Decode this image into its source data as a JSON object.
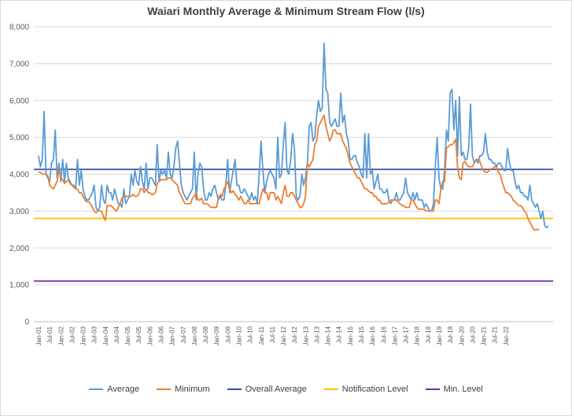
{
  "chart_data": {
    "type": "line",
    "title": "Waiari Monthly Average & Minimum Stream Flow (l/s)",
    "xlabel": "",
    "ylabel": "",
    "ylim": [
      0,
      8000
    ],
    "yticks": [
      "0",
      "1,000",
      "2,000",
      "3,000",
      "4,000",
      "5,000",
      "6,000",
      "7,000",
      "8,000"
    ],
    "x_ticks": [
      "Jan-01",
      "Jul-01",
      "Jan-02",
      "Jul-02",
      "Jan-03",
      "Jul-03",
      "Jan-04",
      "Jul-04",
      "Jan-05",
      "Jul-05",
      "Jan-06",
      "Jul-06",
      "Jan-07",
      "Jul-07",
      "Jan-08",
      "Jul-08",
      "Jan-09",
      "Jul-09",
      "Jan-10",
      "Jul-10",
      "Jan-11",
      "Jul-11",
      "Jan-12",
      "Jul-12",
      "Jan-13",
      "Jul-13",
      "Jan-14",
      "Jul-14",
      "Jan-15",
      "Jul-15",
      "Jan-16",
      "Jul-16",
      "Jan-17",
      "Jul-17",
      "Jan-18",
      "Jul-18",
      "Jan-19",
      "Jul-19",
      "Jan-20",
      "Jul-20",
      "Jan-21",
      "Jul-21",
      "Jan-22"
    ],
    "grid": true,
    "legend_position": "bottom",
    "series": [
      {
        "name": "Average",
        "color": "#5b9bd5",
        "values": [
          4500,
          4200,
          4400,
          5700,
          4000,
          3900,
          3800,
          4300,
          4400,
          5200,
          3900,
          4300,
          3800,
          4400,
          3800,
          4300,
          3900,
          3800,
          3700,
          3700,
          3600,
          4400,
          3700,
          4100,
          3600,
          3400,
          3300,
          3300,
          3400,
          3500,
          3700,
          3100,
          3000,
          3100,
          3700,
          3300,
          3200,
          3700,
          3500,
          3500,
          3300,
          3600,
          3400,
          3200,
          3200,
          3100,
          3600,
          3200,
          3300,
          3400,
          4000,
          3700,
          4100,
          3800,
          3700,
          4200,
          3800,
          3600,
          4300,
          3600,
          3900,
          3900,
          3800,
          3700,
          4800,
          3800,
          4100,
          4000,
          4100,
          3900,
          4600,
          4000,
          3900,
          4200,
          4700,
          4900,
          4300,
          3700,
          3500,
          3400,
          3300,
          3400,
          3500,
          3600,
          4600,
          3300,
          4000,
          4300,
          4200,
          3600,
          3300,
          3300,
          3500,
          3400,
          3600,
          3700,
          3500,
          3300,
          3400,
          3300,
          3300,
          3700,
          4400,
          3500,
          3800,
          4100,
          4400,
          3700,
          3700,
          3500,
          3500,
          3600,
          3500,
          3400,
          3300,
          3500,
          3300,
          3400,
          3200,
          4000,
          4900,
          4100,
          3500,
          3800,
          4000,
          4100,
          4000,
          3900,
          3600,
          5000,
          3900,
          4000,
          4800,
          5400,
          4100,
          4000,
          4400,
          5100,
          4700,
          3400,
          3300,
          3400,
          4000,
          3700,
          3900,
          4300,
          5300,
          5400,
          4900,
          5000,
          5600,
          6000,
          5700,
          5800,
          7550,
          6300,
          6200,
          5400,
          5300,
          5400,
          5500,
          5300,
          5300,
          6200,
          5400,
          5600,
          5100,
          4900,
          4400,
          4400,
          4500,
          4500,
          4300,
          4200,
          4000,
          3900,
          5100,
          3900,
          5100,
          4000,
          4100,
          3600,
          3800,
          4000,
          3600,
          3600,
          3500,
          3500,
          3600,
          3300,
          3200,
          3300,
          3300,
          3500,
          3300,
          3300,
          3400,
          3500,
          3900,
          3500,
          3400,
          3300,
          3500,
          3300,
          3500,
          3300,
          3300,
          3300,
          3100,
          3200,
          3100,
          3000,
          3000,
          3200,
          4200,
          5000,
          3900,
          3600,
          3600,
          4100,
          5200,
          4900,
          6200,
          6300,
          5200,
          6000,
          4500,
          6100,
          4500,
          4600,
          4400,
          4400,
          4700,
          5900,
          4500,
          4300,
          4400,
          4300,
          4500,
          4500,
          4600,
          5100,
          4600,
          4400,
          4400,
          4300,
          4300,
          4200,
          4300,
          4300,
          4200,
          4100,
          4100,
          4700,
          4300,
          4100,
          4100,
          3800,
          3600,
          3700,
          3500,
          3500,
          3400,
          3400,
          3300,
          3700,
          3300,
          3200,
          3100,
          3200,
          3000,
          2800,
          3000,
          2600,
          2550,
          2600
        ]
      },
      {
        "name": "Minimum",
        "color": "#ed7d31",
        "values": [
          4050,
          4050,
          4000,
          4000,
          4000,
          3950,
          3700,
          3650,
          3600,
          3700,
          3800,
          4150,
          3900,
          3850,
          3750,
          3800,
          3850,
          3750,
          3700,
          3650,
          3600,
          3600,
          3500,
          3500,
          3400,
          3300,
          3250,
          3250,
          3200,
          3100,
          3000,
          2950,
          3000,
          3000,
          3000,
          2850,
          2750,
          3150,
          3150,
          3150,
          3100,
          3050,
          3000,
          3100,
          3200,
          3350,
          3400,
          3400,
          3400,
          3400,
          3400,
          3450,
          3400,
          3400,
          3450,
          3600,
          3600,
          3500,
          3600,
          3500,
          3500,
          3450,
          3450,
          3500,
          3750,
          3800,
          3850,
          3850,
          3850,
          3850,
          3900,
          3900,
          3850,
          3800,
          3750,
          3700,
          3500,
          3400,
          3300,
          3200,
          3200,
          3200,
          3200,
          3350,
          3400,
          3500,
          3300,
          3300,
          3350,
          3200,
          3200,
          3200,
          3150,
          3100,
          3100,
          3100,
          3100,
          3350,
          3450,
          3400,
          3600,
          3700,
          3800,
          3600,
          3500,
          3550,
          3450,
          3400,
          3300,
          3400,
          3300,
          3200,
          3200,
          3300,
          3200,
          3200,
          3200,
          3200,
          3200,
          3200,
          3400,
          3600,
          3500,
          3500,
          3300,
          3500,
          3500,
          3500,
          3300,
          3400,
          3300,
          3200,
          3500,
          3700,
          3400,
          3400,
          3500,
          3500,
          3400,
          3300,
          3200,
          3100,
          3100,
          3200,
          3400,
          4300,
          4200,
          4300,
          4400,
          4800,
          4900,
          5300,
          5400,
          5500,
          5600,
          5300,
          5100,
          4900,
          5000,
          5200,
          5200,
          5100,
          5100,
          5100,
          4900,
          4800,
          4700,
          4500,
          4300,
          4200,
          4100,
          4000,
          3900,
          3900,
          3800,
          3700,
          3600,
          3600,
          3550,
          3500,
          3500,
          3400,
          3400,
          3300,
          3300,
          3200,
          3200,
          3200,
          3200,
          3250,
          3300,
          3300,
          3300,
          3300,
          3250,
          3200,
          3150,
          3150,
          3100,
          3100,
          3100,
          3300,
          3300,
          3200,
          3100,
          3050,
          3050,
          3050,
          3050,
          3000,
          3000,
          3000,
          3000,
          3000,
          3300,
          3300,
          3200,
          3600,
          3800,
          3800,
          4700,
          4750,
          4800,
          4800,
          4850,
          4950,
          4200,
          3900,
          3850,
          4300,
          4350,
          4250,
          4200,
          4200,
          4200,
          4300,
          4400,
          4400,
          4350,
          4200,
          4100,
          4050,
          4050,
          4100,
          4150,
          4150,
          4200,
          4200,
          4050,
          4000,
          3800,
          3650,
          3500,
          3500,
          3450,
          3400,
          3300,
          3250,
          3200,
          3150,
          3150,
          3100,
          3000,
          2950,
          2800,
          2700,
          2600,
          2500,
          2480,
          2500,
          2500
        ]
      },
      {
        "name": "Overall Average",
        "color": "#2f4f9f",
        "constant": 4130
      },
      {
        "name": "Notification Level",
        "color": "#ffc000",
        "constant": 2800
      },
      {
        "name": "Min. Level",
        "color": "#7030a0",
        "constant": 1100
      }
    ]
  }
}
